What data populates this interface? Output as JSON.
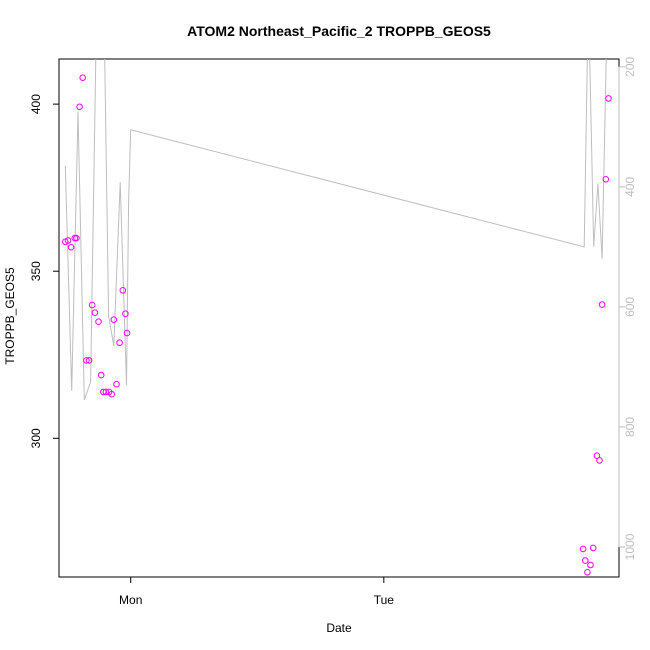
{
  "chart_data": {
    "type": "scatter",
    "title": "ATOM2 Northeast_Pacific_2 TROPPB_GEOS5",
    "xlabel": "Date",
    "ylabel": "TROPPB_GEOS5",
    "x_ticks": [
      "Mon",
      "Tue"
    ],
    "y_ticks": [
      "300",
      "350",
      "400"
    ],
    "y2_ticks": [
      "200",
      "400",
      "600",
      "800",
      "1000"
    ],
    "colors": {
      "points": "#ff00ff",
      "line": "#bebebe",
      "frame": "#000000",
      "right_axis": "#bebebe"
    },
    "note_units": "x in hours relative to Mon 00:00; y in TROPPB_GEOS5; y2 in pressure",
    "x_range": [
      -6.8,
      46.3
    ],
    "y_range": [
      258.5,
      413.5
    ],
    "y2_range": [
      1050,
      187
    ],
    "series": [
      {
        "name": "TROPPB_GEOS5",
        "kind": "points",
        "x": [
          -6.2,
          -5.95,
          -5.65,
          -5.3,
          -5.15,
          -4.85,
          -4.55,
          -4.2,
          -3.95,
          -3.65,
          -3.4,
          -3.05,
          -2.8,
          -2.6,
          -2.35,
          -2.05,
          -1.8,
          -1.6,
          -1.35,
          -1.05,
          -0.75,
          -0.5,
          -0.35,
          42.9,
          43.1,
          43.3,
          43.6,
          43.85,
          44.2,
          44.45,
          44.7,
          45.05,
          45.3
        ],
        "y": [
          358.8,
          359.2,
          357.2,
          359.9,
          359.9,
          399.2,
          407.9,
          323.3,
          323.3,
          339.9,
          337.6,
          334.9,
          318.9,
          313.9,
          313.9,
          313.9,
          313.2,
          335.5,
          316.2,
          328.6,
          344.3,
          337.3,
          331.5,
          266.9,
          263.4,
          259.9,
          262.1,
          267.2,
          294.8,
          293.4,
          340.0,
          377.5,
          401.7
        ]
      },
      {
        "name": "pressure",
        "kind": "line",
        "x": [
          -6.2,
          -5.6,
          -5.0,
          -4.4,
          -3.8,
          -3.2,
          -2.6,
          -2.1,
          -1.6,
          -1.0,
          -0.4,
          -0.2,
          0.0,
          43.0,
          43.4,
          43.9,
          44.3,
          44.7,
          45.2,
          45.6
        ],
        "y2": [
          365,
          740,
          275,
          755,
          725,
          60,
          30,
          615,
          665,
          392,
          730,
          425,
          305,
          500,
          80,
          500,
          395,
          520,
          90,
          60
        ]
      }
    ]
  }
}
